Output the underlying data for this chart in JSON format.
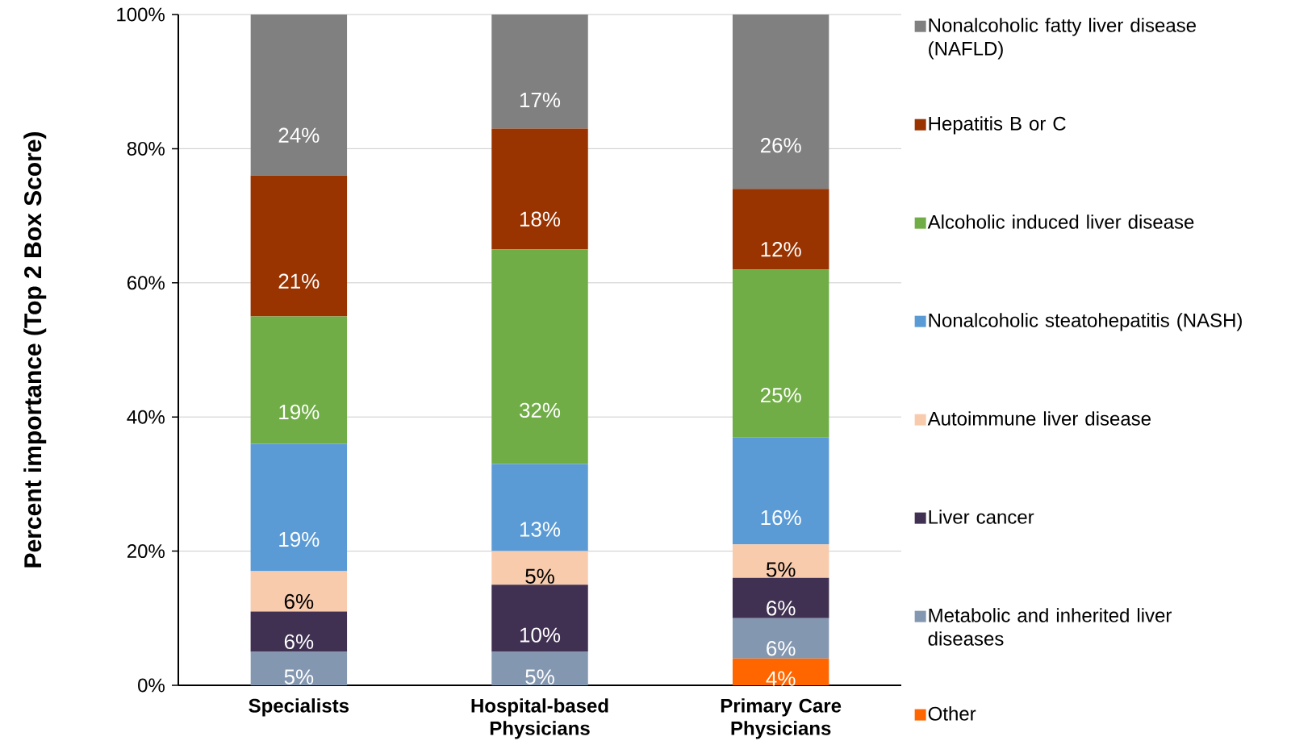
{
  "chart_data": {
    "type": "bar",
    "stacked": true,
    "ylabel": "Percent importance (Top 2 Box Score)",
    "categories": [
      "Specialists",
      "Hospital-based Physicians",
      "Primary Care Physicians"
    ],
    "ylim": [
      0,
      100
    ],
    "yticks": [
      {
        "value": 0,
        "label": "0%"
      },
      {
        "value": 20,
        "label": "20%"
      },
      {
        "value": 40,
        "label": "40%"
      },
      {
        "value": 60,
        "label": "60%"
      },
      {
        "value": 80,
        "label": "80%"
      },
      {
        "value": 100,
        "label": "100%"
      }
    ],
    "grid": "y",
    "legend": "right",
    "series": [
      {
        "name": "Other",
        "color": "#ff6600",
        "values": [
          null,
          null,
          4
        ],
        "value_labels": [
          null,
          null,
          "4%"
        ]
      },
      {
        "name": "Metabolic and inherited liver diseases",
        "color": "#8497b0",
        "values": [
          5,
          5,
          6
        ],
        "value_labels": [
          "5%",
          "5%",
          "6%"
        ]
      },
      {
        "name": "Liver cancer",
        "color": "#403152",
        "values": [
          6,
          10,
          6
        ],
        "value_labels": [
          "6%",
          "10%",
          "6%"
        ]
      },
      {
        "name": "Autoimmune liver disease",
        "color": "#f8cbad",
        "values": [
          6,
          5,
          5
        ],
        "value_labels": [
          "6%",
          "5%",
          "5%"
        ]
      },
      {
        "name": "Nonalcoholic steatohepatitis (NASH)",
        "color": "#5b9bd5",
        "values": [
          19,
          13,
          16
        ],
        "value_labels": [
          "19%",
          "13%",
          "16%"
        ]
      },
      {
        "name": "Alcoholic induced liver disease",
        "color": "#70ad47",
        "values": [
          19,
          32,
          25
        ],
        "value_labels": [
          "19%",
          "32%",
          "25%"
        ]
      },
      {
        "name": "Hepatitis B or C",
        "color": "#993300",
        "values": [
          21,
          18,
          12
        ],
        "value_labels": [
          "21%",
          "18%",
          "12%"
        ]
      },
      {
        "name": "Nonalcoholic fatty liver disease (NAFLD)",
        "color": "#808080",
        "values": [
          24,
          17,
          26
        ],
        "value_labels": [
          "24%",
          "17%",
          "26%"
        ]
      }
    ]
  }
}
